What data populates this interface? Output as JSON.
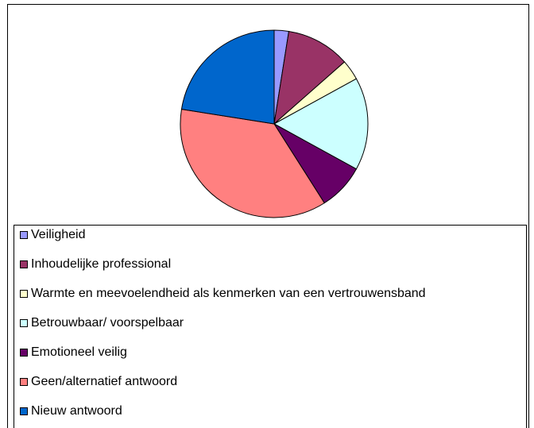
{
  "chart_data": {
    "type": "pie",
    "categories": [
      "Veiligheid",
      "Inhoudelijke professional",
      "Warmte en meevoelendheid als kenmerken van een vertrouwensband",
      "Betrouwbaar/ voorspelbaar",
      "Emotioneel veilig",
      "Geen/alternatief antwoord",
      "Nieuw antwoord"
    ],
    "values": [
      2.5,
      11,
      3.5,
      16,
      8,
      36.5,
      22.5
    ],
    "colors": [
      "#9999ff",
      "#993366",
      "#ffffcc",
      "#ccffff",
      "#660066",
      "#ff8080",
      "#0066cc"
    ]
  }
}
